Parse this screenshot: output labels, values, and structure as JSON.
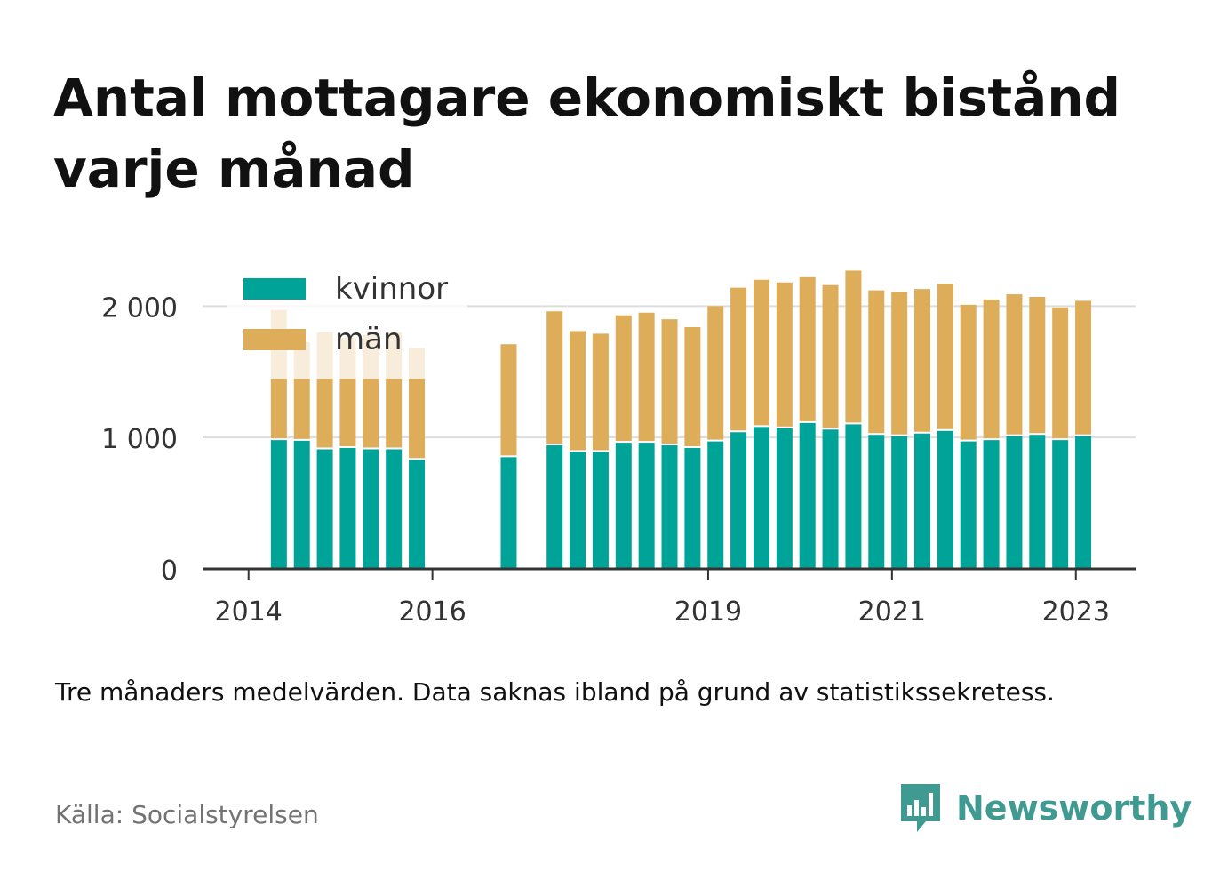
{
  "title": "Antal mottagare ekonomiskt bistånd varje månad",
  "note": "Tre månaders medelvärden. Data saknas ibland på grund av statistikssekretess.",
  "source": "Källa: Socialstyrelsen",
  "brand": {
    "name": "Newsworthy",
    "logo_icon": "bar-chart-speech-bubble-icon"
  },
  "colors": {
    "kvinnor": "#00a398",
    "man": "#ddad5a",
    "grid": "#dddddd",
    "axis": "#333333",
    "brand": "#3f9b92"
  },
  "chart_data": {
    "type": "bar",
    "stacked": true,
    "title": "Antal mottagare ekonomiskt bistånd varje månad",
    "ylim": [
      0,
      2300
    ],
    "yticks": [
      0,
      1000,
      2000
    ],
    "ytick_labels": [
      "0",
      "1 000",
      "2 000"
    ],
    "xticks": [
      {
        "label": "2014",
        "t": 2014.0
      },
      {
        "label": "2016",
        "t": 2016.0
      },
      {
        "label": "2019",
        "t": 2019.0
      },
      {
        "label": "2021",
        "t": 2021.0
      },
      {
        "label": "2023",
        "t": 2023.0
      }
    ],
    "xlim": [
      2013.5,
      2023.65
    ],
    "grid": true,
    "legend_position": "top-left",
    "series": [
      {
        "name": "kvinnor",
        "color": "#00a398"
      },
      {
        "name": "män",
        "color": "#ddad5a"
      }
    ],
    "periods": [
      {
        "t": 2014.33,
        "kvinnor": 980,
        "man": 990
      },
      {
        "t": 2014.58,
        "kvinnor": 975,
        "man": 750
      },
      {
        "t": 2014.83,
        "kvinnor": 910,
        "man": 890
      },
      {
        "t": 2015.08,
        "kvinnor": 920,
        "man": 840
      },
      {
        "t": 2015.33,
        "kvinnor": 910,
        "man": 870
      },
      {
        "t": 2015.58,
        "kvinnor": 910,
        "man": 890
      },
      {
        "t": 2015.83,
        "kvinnor": 830,
        "man": 850
      },
      {
        "t": 2016.83,
        "kvinnor": 850,
        "man": 860
      },
      {
        "t": 2017.33,
        "kvinnor": 940,
        "man": 1020
      },
      {
        "t": 2017.58,
        "kvinnor": 890,
        "man": 920
      },
      {
        "t": 2017.83,
        "kvinnor": 890,
        "man": 900
      },
      {
        "t": 2018.08,
        "kvinnor": 960,
        "man": 970
      },
      {
        "t": 2018.33,
        "kvinnor": 960,
        "man": 990
      },
      {
        "t": 2018.58,
        "kvinnor": 940,
        "man": 960
      },
      {
        "t": 2018.83,
        "kvinnor": 920,
        "man": 920
      },
      {
        "t": 2019.08,
        "kvinnor": 970,
        "man": 1030
      },
      {
        "t": 2019.33,
        "kvinnor": 1040,
        "man": 1100
      },
      {
        "t": 2019.58,
        "kvinnor": 1080,
        "man": 1120
      },
      {
        "t": 2019.83,
        "kvinnor": 1070,
        "man": 1110
      },
      {
        "t": 2020.08,
        "kvinnor": 1110,
        "man": 1110
      },
      {
        "t": 2020.33,
        "kvinnor": 1060,
        "man": 1100
      },
      {
        "t": 2020.58,
        "kvinnor": 1100,
        "man": 1170
      },
      {
        "t": 2020.83,
        "kvinnor": 1020,
        "man": 1100
      },
      {
        "t": 2021.08,
        "kvinnor": 1010,
        "man": 1100
      },
      {
        "t": 2021.33,
        "kvinnor": 1030,
        "man": 1100
      },
      {
        "t": 2021.58,
        "kvinnor": 1050,
        "man": 1120
      },
      {
        "t": 2021.83,
        "kvinnor": 970,
        "man": 1040
      },
      {
        "t": 2022.08,
        "kvinnor": 980,
        "man": 1070
      },
      {
        "t": 2022.33,
        "kvinnor": 1010,
        "man": 1080
      },
      {
        "t": 2022.58,
        "kvinnor": 1020,
        "man": 1050
      },
      {
        "t": 2022.83,
        "kvinnor": 980,
        "man": 1010
      },
      {
        "t": 2023.08,
        "kvinnor": 1010,
        "man": 1030
      }
    ]
  }
}
